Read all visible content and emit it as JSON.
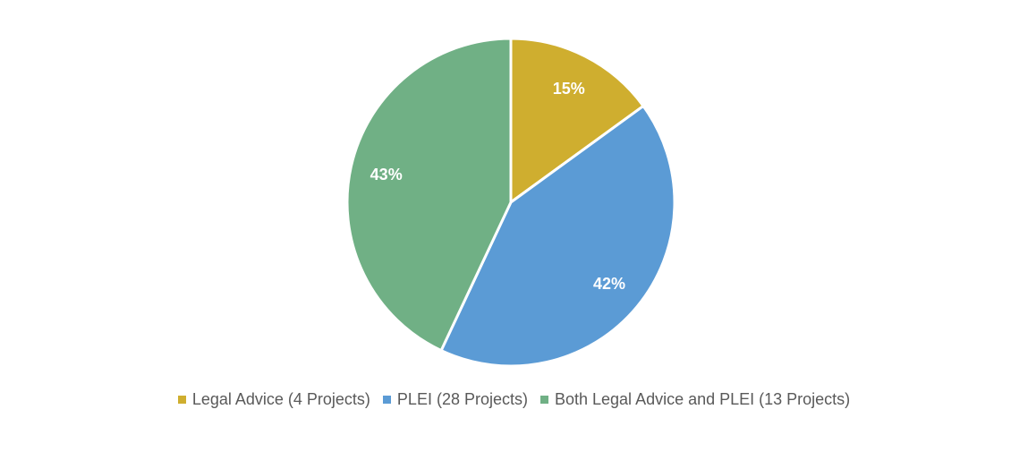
{
  "chart_data": {
    "type": "pie",
    "start_angle_deg": 0,
    "direction": "clockwise",
    "slices": [
      {
        "label": "Legal Advice (4 Projects)",
        "value": 15,
        "display": "15%",
        "color": "#CFAE2F"
      },
      {
        "label": "PLEI (28 Projects)",
        "value": 42,
        "display": "42%",
        "color": "#5B9BD5"
      },
      {
        "label": "Both Legal Advice and PLEI (13 Projects)",
        "value": 43,
        "display": "43%",
        "color": "#70B085"
      }
    ],
    "legend_position": "bottom",
    "title": ""
  }
}
